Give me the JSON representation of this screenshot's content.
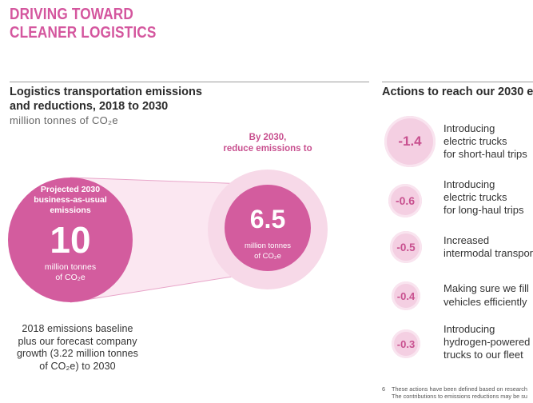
{
  "header": {
    "title_lines": [
      "DRIVING TOWARD",
      "CLEANER LOGISTICS"
    ]
  },
  "left_panel": {
    "heading_lines": [
      "Logistics transportation emissions",
      "and reductions, 2018 to 2030"
    ],
    "unit": "million tonnes of CO₂e",
    "projected": {
      "label_lines": [
        "Projected 2030",
        "business-as-usual",
        "emissions"
      ],
      "value": "10",
      "unit_lines": [
        "million tonnes",
        "of CO₂e"
      ]
    },
    "target": {
      "caption_lines": [
        "By 2030,",
        "reduce emissions to"
      ],
      "value": "6.5",
      "unit_lines": [
        "million tonnes",
        "of CO₂e"
      ]
    },
    "baseline_note_lines": [
      "2018 emissions baseline",
      "plus our forecast company",
      "growth (3.22 million tonnes",
      "of CO₂e) to 2030"
    ]
  },
  "right_panel": {
    "heading": "Actions to reach our 2030 e",
    "actions": [
      {
        "value": "-1.4",
        "lines": [
          "Introducing",
          "electric trucks",
          "for short-haul trips"
        ]
      },
      {
        "value": "-0.6",
        "lines": [
          "Introducing",
          "electric trucks",
          "for long-haul trips"
        ]
      },
      {
        "value": "-0.5",
        "lines": [
          "Increased",
          "intermodal transpor"
        ]
      },
      {
        "value": "-0.4",
        "lines": [
          "Making sure we fill",
          "vehicles efficiently"
        ]
      },
      {
        "value": "-0.3",
        "lines": [
          "Introducing",
          "hydrogen-powered",
          "trucks to our fleet"
        ]
      }
    ]
  },
  "footnote": {
    "number": "6",
    "lines": [
      "These actions have been defined based on research",
      "The contributions to emissions reductions may be su"
    ]
  },
  "colors": {
    "accent": "#d35c9e",
    "accent_text": "#c8508f",
    "title": "#d4569e",
    "light": "#f4cfe2",
    "halo": "#f7d9e8",
    "band": "#fbe7f1",
    "text": "#333333",
    "muted": "#666666"
  }
}
